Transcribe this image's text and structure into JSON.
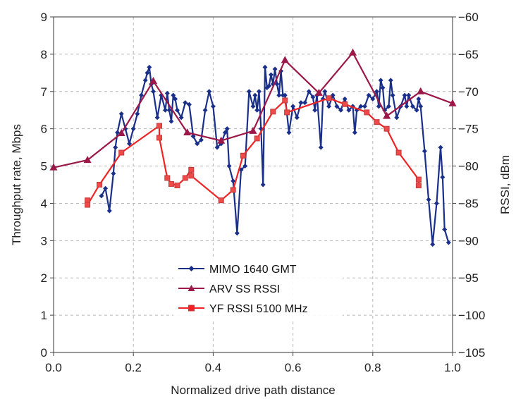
{
  "chart_data": {
    "type": "line",
    "xlabel": "Normalized drive path distance",
    "ylabel": "Throughput rate, Mbps",
    "y2label": "RSSI, dBm",
    "xlim": [
      0,
      1
    ],
    "ylim": [
      0,
      9
    ],
    "y2lim": [
      -105,
      -60
    ],
    "xticks": [
      "0.0",
      "0.2",
      "0.4",
      "0.6",
      "0.8",
      "1.0"
    ],
    "yticks": [
      "0",
      "1",
      "2",
      "3",
      "4",
      "5",
      "6",
      "7",
      "8",
      "9"
    ],
    "y2ticks": [
      "-105",
      "-100",
      "-95",
      "-90",
      "-85",
      "-80",
      "-75",
      "-70",
      "-65",
      "-60"
    ],
    "grid": "vertical dashed + horizontal at right-axis ticks",
    "legend_position": "center-bottom",
    "series": [
      {
        "name": "MIMO 1640 GMT",
        "axis": "left",
        "color": "#1a2f8a",
        "marker": "diamond",
        "points": [
          [
            0.12,
            4.2
          ],
          [
            0.13,
            4.4
          ],
          [
            0.14,
            3.8
          ],
          [
            0.15,
            4.8
          ],
          [
            0.155,
            5.5
          ],
          [
            0.16,
            5.9
          ],
          [
            0.17,
            6.4
          ],
          [
            0.18,
            6.0
          ],
          [
            0.19,
            5.6
          ],
          [
            0.2,
            6.0
          ],
          [
            0.21,
            6.4
          ],
          [
            0.22,
            6.9
          ],
          [
            0.23,
            7.3
          ],
          [
            0.235,
            7.5
          ],
          [
            0.24,
            7.65
          ],
          [
            0.245,
            7.2
          ],
          [
            0.25,
            7.0
          ],
          [
            0.26,
            6.3
          ],
          [
            0.27,
            6.9
          ],
          [
            0.28,
            6.5
          ],
          [
            0.285,
            6.95
          ],
          [
            0.29,
            6.5
          ],
          [
            0.295,
            6.2
          ],
          [
            0.3,
            6.9
          ],
          [
            0.305,
            6.8
          ],
          [
            0.31,
            6.5
          ],
          [
            0.32,
            6.3
          ],
          [
            0.33,
            6.7
          ],
          [
            0.34,
            6.65
          ],
          [
            0.35,
            5.8
          ],
          [
            0.36,
            5.6
          ],
          [
            0.37,
            5.7
          ],
          [
            0.38,
            6.5
          ],
          [
            0.39,
            7.0
          ],
          [
            0.4,
            6.6
          ],
          [
            0.41,
            5.5
          ],
          [
            0.42,
            5.6
          ],
          [
            0.43,
            5.9
          ],
          [
            0.435,
            6.0
          ],
          [
            0.44,
            5.0
          ],
          [
            0.45,
            4.6
          ],
          [
            0.46,
            3.2
          ],
          [
            0.47,
            4.9
          ],
          [
            0.48,
            5.0
          ],
          [
            0.49,
            7.0
          ],
          [
            0.5,
            6.6
          ],
          [
            0.505,
            6.9
          ],
          [
            0.51,
            6.5
          ],
          [
            0.515,
            7.0
          ],
          [
            0.52,
            6.0
          ],
          [
            0.525,
            4.5
          ],
          [
            0.53,
            7.65
          ],
          [
            0.535,
            7.1
          ],
          [
            0.54,
            7.15
          ],
          [
            0.545,
            7.45
          ],
          [
            0.55,
            7.2
          ],
          [
            0.555,
            7.6
          ],
          [
            0.56,
            7.2
          ],
          [
            0.565,
            6.9
          ],
          [
            0.57,
            7.55
          ],
          [
            0.575,
            6.9
          ],
          [
            0.58,
            6.9
          ],
          [
            0.59,
            5.9
          ],
          [
            0.6,
            6.6
          ],
          [
            0.61,
            6.3
          ],
          [
            0.62,
            6.7
          ],
          [
            0.63,
            6.7
          ],
          [
            0.64,
            7.0
          ],
          [
            0.65,
            6.85
          ],
          [
            0.655,
            6.5
          ],
          [
            0.66,
            6.9
          ],
          [
            0.67,
            5.5
          ],
          [
            0.675,
            6.8
          ],
          [
            0.68,
            7.0
          ],
          [
            0.69,
            6.6
          ],
          [
            0.7,
            6.9
          ],
          [
            0.71,
            6.6
          ],
          [
            0.72,
            6.5
          ],
          [
            0.73,
            6.8
          ],
          [
            0.74,
            6.5
          ],
          [
            0.75,
            6.6
          ],
          [
            0.755,
            5.9
          ],
          [
            0.76,
            6.5
          ],
          [
            0.77,
            6.6
          ],
          [
            0.78,
            6.6
          ],
          [
            0.79,
            6.9
          ],
          [
            0.8,
            6.8
          ],
          [
            0.81,
            7.0
          ],
          [
            0.815,
            6.6
          ],
          [
            0.82,
            7.3
          ],
          [
            0.825,
            7.1
          ],
          [
            0.83,
            6.5
          ],
          [
            0.84,
            6.6
          ],
          [
            0.845,
            7.3
          ],
          [
            0.85,
            6.9
          ],
          [
            0.86,
            6.3
          ],
          [
            0.87,
            6.6
          ],
          [
            0.88,
            6.9
          ],
          [
            0.885,
            6.6
          ],
          [
            0.89,
            6.9
          ],
          [
            0.9,
            6.6
          ],
          [
            0.91,
            6.5
          ],
          [
            0.915,
            6.8
          ],
          [
            0.92,
            6.6
          ],
          [
            0.93,
            5.4
          ],
          [
            0.94,
            4.1
          ],
          [
            0.95,
            2.9
          ],
          [
            0.96,
            4.0
          ],
          [
            0.97,
            5.5
          ],
          [
            0.975,
            4.7
          ],
          [
            0.98,
            3.3
          ],
          [
            0.99,
            2.95
          ]
        ]
      },
      {
        "name": "ARV SS RSSI",
        "axis": "right",
        "color": "#9b1848",
        "marker": "triangle",
        "points": [
          [
            0.0,
            -80.2
          ],
          [
            0.085,
            -79.2
          ],
          [
            0.17,
            -75.6
          ],
          [
            0.25,
            -68.6
          ],
          [
            0.335,
            -75.5
          ],
          [
            0.42,
            -76.6
          ],
          [
            0.5,
            -75.3
          ],
          [
            0.58,
            -65.8
          ],
          [
            0.665,
            -70.2
          ],
          [
            0.75,
            -64.8
          ],
          [
            0.835,
            -73.3
          ],
          [
            0.92,
            -70.0
          ],
          [
            1.0,
            -71.6
          ]
        ]
      },
      {
        "name": "YF RSSI 5100 MHz",
        "axis": "right",
        "color": "#ee2424",
        "marker": "square",
        "points": [
          [
            0.085,
            -84.6
          ],
          [
            0.085,
            -85.2
          ],
          [
            0.115,
            -82.5
          ],
          [
            0.17,
            -78.2
          ],
          [
            0.265,
            -74.6
          ],
          [
            0.265,
            -76.2
          ],
          [
            0.285,
            -81.6
          ],
          [
            0.295,
            -82.4
          ],
          [
            0.31,
            -82.6
          ],
          [
            0.33,
            -81.6
          ],
          [
            0.345,
            -80.5
          ],
          [
            0.345,
            -81.3
          ],
          [
            0.42,
            -84.6
          ],
          [
            0.45,
            -83.2
          ],
          [
            0.475,
            -78.6
          ],
          [
            0.51,
            -76.3
          ],
          [
            0.55,
            -72.7
          ],
          [
            0.58,
            -71.2
          ],
          [
            0.585,
            -72.8
          ],
          [
            0.69,
            -70.9
          ],
          [
            0.73,
            -71.7
          ],
          [
            0.785,
            -72.8
          ],
          [
            0.81,
            -74.1
          ],
          [
            0.835,
            -75.0
          ],
          [
            0.865,
            -78.2
          ],
          [
            0.915,
            -81.8
          ],
          [
            0.915,
            -82.6
          ]
        ]
      }
    ]
  }
}
